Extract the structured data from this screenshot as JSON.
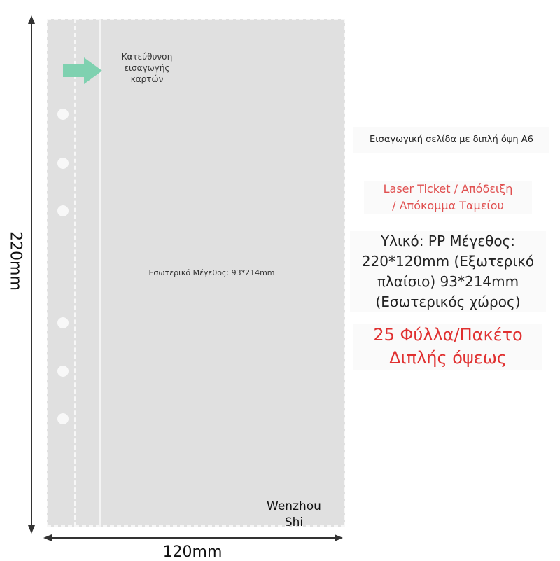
{
  "insert_direction": "Κατεύθυνση εισαγωγής καρτών",
  "inner_size_label": "Εσωτερικό Μέγεθος: 93*214mm",
  "watermark": "Wenzhou Shi",
  "height_label": "220mm",
  "width_label": "120mm",
  "info": {
    "title": "Εισαγωγική σελίδα με διπλή όψη A6",
    "usage_line1": "Laser Ticket / Απόδειξη",
    "usage_line2": "/ Απόκομμα Ταμείου",
    "material": "Υλικό: PP Μέγεθος: 220*120mm (Εξωτερικό πλαίσιο) 93*214mm (Εσωτερικός χώρος)",
    "pack_line1": "25 Φύλλα/Πακέτο",
    "pack_line2": "Διπλής όψεως"
  },
  "colors": {
    "arrow": "#7fd1b0",
    "accent_red": "#e03030",
    "usage_red": "#e05050"
  }
}
